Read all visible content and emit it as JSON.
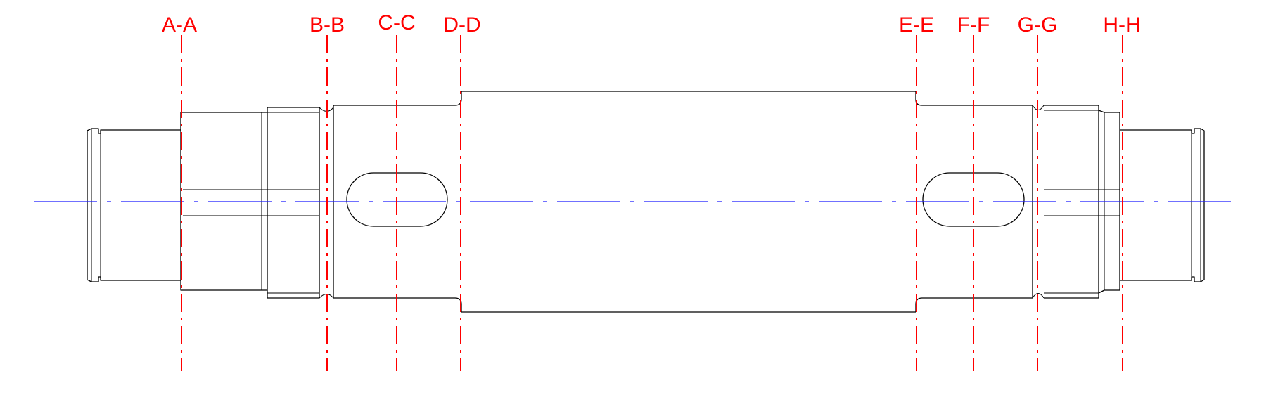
{
  "colors": {
    "outline": "#000000",
    "center_axis": "#1a1aff",
    "section_marker": "#ff0000",
    "background": "#ffffff"
  },
  "sections": [
    {
      "id": "A",
      "label": "A-A"
    },
    {
      "id": "B",
      "label": "B-B"
    },
    {
      "id": "C",
      "label": "C-C"
    },
    {
      "id": "D",
      "label": "D-D"
    },
    {
      "id": "E",
      "label": "E-E"
    },
    {
      "id": "F",
      "label": "F-F"
    },
    {
      "id": "G",
      "label": "G-G"
    },
    {
      "id": "H",
      "label": "H-H"
    }
  ]
}
